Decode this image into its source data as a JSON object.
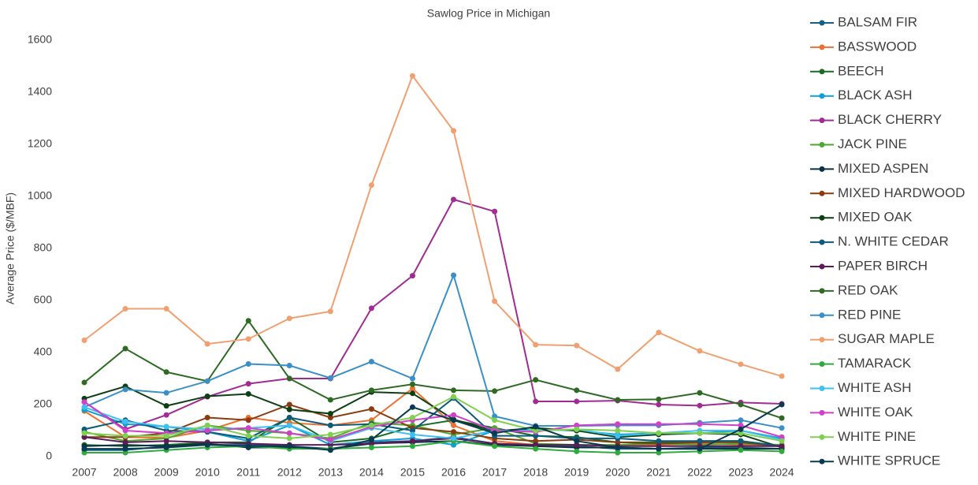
{
  "chart_data": {
    "type": "line",
    "title": "Sawlog Price in Michigan",
    "y_label": "Average Price ($/MBF)",
    "categories": [
      "2007",
      "2008",
      "2009",
      "2010",
      "2011",
      "2012",
      "2013",
      "2014",
      "2015",
      "2016",
      "2017",
      "2018",
      "2019",
      "2020",
      "2021",
      "2022",
      "2023",
      "2024"
    ],
    "ylim": [
      0,
      1600
    ],
    "yticks": [
      0,
      200,
      400,
      600,
      800,
      1000,
      1200,
      1400,
      1600
    ],
    "grid": false,
    "legend": "right",
    "series": [
      {
        "name": "BALSAM FIR",
        "color": "#156082",
        "values": [
          25,
          25,
          40,
          45,
          45,
          40,
          30,
          55,
          60,
          75,
          50,
          40,
          40,
          30,
          30,
          35,
          35,
          30
        ]
      },
      {
        "name": "BASSWOOD",
        "color": "#e97132",
        "values": [
          175,
          75,
          72,
          100,
          150,
          130,
          120,
          140,
          262,
          120,
          60,
          45,
          45,
          40,
          45,
          50,
          45,
          40
        ]
      },
      {
        "name": "BEECH",
        "color": "#196b24",
        "values": [
          45,
          40,
          45,
          55,
          55,
          150,
          55,
          70,
          115,
          140,
          110,
          80,
          75,
          55,
          55,
          60,
          60,
          40
        ]
      },
      {
        "name": "BLACK ASH",
        "color": "#0f9ed5",
        "values": [
          180,
          125,
          115,
          95,
          60,
          120,
          45,
          60,
          70,
          45,
          100,
          105,
          100,
          85,
          90,
          90,
          100,
          70
        ]
      },
      {
        "name": "BLACK CHERRY",
        "color": "#a02b93",
        "values": [
          210,
          105,
          160,
          230,
          280,
          300,
          300,
          570,
          695,
          988,
          942,
          212,
          212,
          215,
          200,
          196,
          208,
          203
        ]
      },
      {
        "name": "JACK PINE",
        "color": "#4ea72e",
        "values": [
          95,
          60,
          70,
          120,
          100,
          90,
          70,
          130,
          120,
          85,
          110,
          50,
          45,
          45,
          50,
          45,
          50,
          45
        ]
      },
      {
        "name": "MIXED ASPEN",
        "color": "#0b3041",
        "values": [
          40,
          45,
          40,
          50,
          35,
          35,
          30,
          50,
          55,
          60,
          45,
          40,
          35,
          35,
          30,
          30,
          30,
          30
        ]
      },
      {
        "name": "MIXED HARDWOOD",
        "color": "#8a3b0f",
        "values": [
          75,
          75,
          90,
          150,
          140,
          200,
          150,
          183,
          110,
          95,
          70,
          60,
          65,
          55,
          50,
          55,
          55,
          40
        ]
      },
      {
        "name": "MIXED OAK",
        "color": "#0e3f14",
        "values": [
          223,
          270,
          195,
          232,
          241,
          181,
          165,
          248,
          243,
          143,
          98,
          110,
          100,
          75,
          85,
          90,
          85,
          35
        ]
      },
      {
        "name": "N. WHITE CEDAR",
        "color": "#0c5b7a",
        "values": [
          105,
          140,
          100,
          95,
          70,
          150,
          120,
          125,
          100,
          225,
          80,
          80,
          70,
          70,
          60,
          60,
          60,
          40
        ]
      },
      {
        "name": "PAPER BIRCH",
        "color": "#5f1a58",
        "values": [
          75,
          55,
          60,
          55,
          50,
          45,
          45,
          50,
          60,
          70,
          50,
          45,
          45,
          40,
          40,
          40,
          40,
          40
        ]
      },
      {
        "name": "RED OAK",
        "color": "#2f6a24",
        "values": [
          285,
          415,
          325,
          290,
          522,
          300,
          218,
          255,
          278,
          255,
          252,
          295,
          255,
          218,
          220,
          245,
          200,
          148
        ]
      },
      {
        "name": "RED PINE",
        "color": "#3a8fc6",
        "values": [
          190,
          258,
          245,
          290,
          356,
          350,
          302,
          365,
          300,
          697,
          155,
          118,
          118,
          120,
          120,
          130,
          140,
          110
        ]
      },
      {
        "name": "SUGAR MAPLE",
        "color": "#f0a070",
        "values": [
          447,
          568,
          568,
          433,
          452,
          531,
          558,
          1043,
          1463,
          1252,
          597,
          430,
          427,
          336,
          477,
          406,
          355,
          309
        ]
      },
      {
        "name": "TAMARACK",
        "color": "#2eab3c",
        "values": [
          15,
          15,
          25,
          35,
          40,
          30,
          30,
          35,
          40,
          60,
          40,
          30,
          20,
          15,
          15,
          20,
          25,
          20
        ]
      },
      {
        "name": "WHITE ASH",
        "color": "#40c0f0",
        "values": [
          190,
          135,
          115,
          105,
          110,
          120,
          60,
          110,
          85,
          70,
          100,
          100,
          105,
          80,
          90,
          100,
          100,
          65
        ]
      },
      {
        "name": "WHITE OAK",
        "color": "#d040c8",
        "values": [
          210,
          100,
          90,
          100,
          110,
          90,
          65,
          115,
          140,
          160,
          100,
          95,
          120,
          125,
          125,
          125,
          120,
          75
        ]
      },
      {
        "name": "WHITE PINE",
        "color": "#80d050",
        "values": [
          90,
          80,
          80,
          120,
          80,
          70,
          85,
          120,
          150,
          230,
          140,
          100,
          105,
          100,
          90,
          90,
          90,
          60
        ]
      },
      {
        "name": "WHITE SPRUCE",
        "color": "#0a3a50",
        "values": [
          30,
          30,
          35,
          45,
          40,
          40,
          25,
          65,
          190,
          140,
          90,
          115,
          60,
          35,
          30,
          30,
          105,
          200
        ]
      }
    ]
  }
}
